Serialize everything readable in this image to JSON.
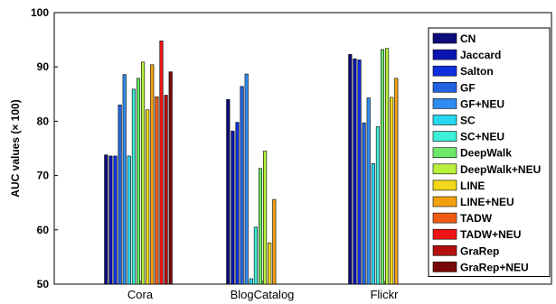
{
  "chart_data": {
    "type": "bar",
    "ylabel": "AUC values (× 100)",
    "ylim": [
      50,
      100
    ],
    "yticks": [
      "50",
      "60",
      "70",
      "80",
      "90",
      "100"
    ],
    "grid": false,
    "legend_position": "right",
    "categories": [
      "Cora",
      "BlogCatalog",
      "Flickr"
    ],
    "series": [
      {
        "name": "CN",
        "color": "#0c0c7a",
        "values": [
          73.8,
          84.0,
          92.3
        ]
      },
      {
        "name": "Jaccard",
        "color": "#0a14b0",
        "values": [
          73.6,
          78.2,
          91.5
        ]
      },
      {
        "name": "Salton",
        "color": "#1030e0",
        "values": [
          73.6,
          79.8,
          91.3
        ]
      },
      {
        "name": "GF",
        "color": "#1f63e0",
        "values": [
          83.0,
          86.4,
          79.7
        ]
      },
      {
        "name": "GF+NEU",
        "color": "#2e8cf0",
        "values": [
          88.6,
          88.7,
          84.3
        ]
      },
      {
        "name": "SC",
        "color": "#28d6f0",
        "values": [
          73.6,
          51.0,
          72.2
        ]
      },
      {
        "name": "SC+NEU",
        "color": "#3ef0d8",
        "values": [
          85.9,
          60.5,
          79.0
        ]
      },
      {
        "name": "DeepWalk",
        "color": "#6ee86a",
        "values": [
          87.9,
          71.3,
          93.2
        ]
      },
      {
        "name": "DeepWalk+NEU",
        "color": "#b8f03c",
        "values": [
          90.9,
          74.5,
          93.4
        ]
      },
      {
        "name": "LINE",
        "color": "#f2d81a",
        "values": [
          82.1,
          57.6,
          84.4
        ]
      },
      {
        "name": "LINE+NEU",
        "color": "#f2a010",
        "values": [
          90.4,
          65.6,
          87.9
        ]
      },
      {
        "name": "TADW",
        "color": "#f05a14",
        "values": [
          84.5,
          50.0,
          50.0
        ]
      },
      {
        "name": "TADW+NEU",
        "color": "#f01414",
        "values": [
          94.8,
          50.0,
          50.0
        ]
      },
      {
        "name": "GraRep",
        "color": "#b41010",
        "values": [
          84.8,
          50.0,
          50.0
        ]
      },
      {
        "name": "GraRep+NEU",
        "color": "#7a0808",
        "values": [
          89.1,
          50.0,
          50.0
        ]
      }
    ]
  }
}
